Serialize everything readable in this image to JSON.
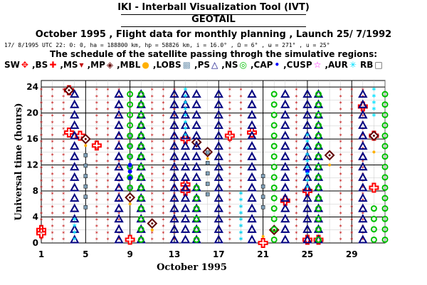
{
  "header": {
    "title": "IKI - Interball Visualization Tool (IVT)",
    "subtitle": "GEOTAIL",
    "headline": "October  1995 ,  Flight data for monthly planning ,   Launch 25/ 7/1992",
    "orbit_line": "17/ 8/1995 UTC 22: 0: 0, ha = 188800 km, hp =  58826 km, i = 16.0° , Ω =   6° , ω = 271° , u =  25°",
    "schedule_text": "The schedule of the satellite passing throgh the simulative regions:"
  },
  "legend": [
    {
      "label": "SW",
      "symbol": "sw",
      "color": "#ff0000"
    },
    {
      "label": "BS",
      "symbol": "bs",
      "color": "#ff0000"
    },
    {
      "label": "MS",
      "symbol": "ms",
      "color": "#c00000"
    },
    {
      "label": "MP",
      "symbol": "mp",
      "color": "#600000"
    },
    {
      "label": "MBL",
      "symbol": "mbl",
      "color": "#ffb000"
    },
    {
      "label": "LOBS",
      "symbol": "lobs",
      "color": "#80a0b8"
    },
    {
      "label": "PS",
      "symbol": "ps",
      "color": "#000080"
    },
    {
      "label": "NS",
      "symbol": "ns",
      "color": "#00c000"
    },
    {
      "label": "CAP",
      "symbol": "cap",
      "color": "#0000ff"
    },
    {
      "label": "CUSP",
      "symbol": "cusp",
      "color": "#ff00ff"
    },
    {
      "label": "AUR",
      "symbol": "aur",
      "color": "#00e0ff"
    },
    {
      "label": "RB",
      "symbol": "rb",
      "color": "#404040"
    }
  ],
  "chart_data": {
    "type": "scatter",
    "title": "",
    "xlabel": "October  1995",
    "ylabel": "Universal time (hours)",
    "xlim": [
      1,
      32
    ],
    "ylim": [
      0,
      25
    ],
    "xticks": [
      1,
      5,
      9,
      13,
      17,
      21,
      25,
      29
    ],
    "yticks": [
      0,
      4,
      8,
      12,
      16,
      20,
      24
    ],
    "grid": true,
    "series": [
      {
        "name": "SW",
        "region": "sw",
        "points": [
          [
            1,
            2
          ],
          [
            3.5,
            23.5
          ],
          [
            14,
            9
          ],
          [
            14,
            16
          ],
          [
            21,
            0
          ],
          [
            25,
            8
          ],
          [
            26,
            0.5
          ],
          [
            31,
            16.5
          ]
        ]
      },
      {
        "name": "BS",
        "region": "bs",
        "points": [
          [
            1,
            1.5
          ],
          [
            3.5,
            17
          ],
          [
            4.5,
            16.5
          ],
          [
            6,
            15
          ],
          [
            9,
            0.5
          ],
          [
            14,
            8
          ],
          [
            18,
            16.5
          ],
          [
            20,
            17
          ],
          [
            23,
            6.5
          ],
          [
            25,
            0.5
          ],
          [
            30,
            21
          ],
          [
            31,
            8.5
          ]
        ]
      },
      {
        "name": "MS",
        "region": "ms",
        "ranges": [
          [
            1,
            0,
            24
          ],
          [
            2,
            0,
            24
          ],
          [
            3,
            0,
            24
          ],
          [
            6,
            0,
            24
          ],
          [
            7,
            0,
            24
          ],
          [
            8,
            0,
            24
          ],
          [
            11,
            0,
            24
          ],
          [
            12,
            0,
            24
          ],
          [
            13,
            0,
            24
          ],
          [
            18,
            0,
            24
          ],
          [
            19,
            0,
            24
          ],
          [
            24,
            0,
            24
          ],
          [
            28,
            0,
            24
          ],
          [
            29,
            0,
            24
          ],
          [
            30,
            0,
            24
          ]
        ]
      },
      {
        "name": "MP",
        "region": "mp",
        "points": [
          [
            3.5,
            23.5
          ],
          [
            5,
            16
          ],
          [
            9,
            7
          ],
          [
            11,
            3
          ],
          [
            15,
            15.5
          ],
          [
            16,
            14
          ],
          [
            22,
            2
          ],
          [
            27,
            13.5
          ],
          [
            31,
            16.5
          ]
        ]
      },
      {
        "name": "MBL",
        "region": "mbl",
        "points": [
          [
            5,
            15
          ],
          [
            9,
            6
          ],
          [
            11,
            2
          ],
          [
            16,
            13
          ],
          [
            21,
            1
          ],
          [
            27,
            12
          ],
          [
            31,
            14
          ]
        ]
      },
      {
        "name": "LOBS",
        "region": "lobs",
        "ranges": [
          [
            5,
            5,
            15
          ],
          [
            9,
            8,
            18
          ],
          [
            16,
            7,
            14
          ],
          [
            21,
            5,
            11
          ]
        ]
      },
      {
        "name": "PS",
        "region": "ps",
        "ranges": [
          [
            4,
            0,
            24
          ],
          [
            8,
            0,
            24
          ],
          [
            10,
            0,
            24
          ],
          [
            13,
            0,
            24
          ],
          [
            14,
            0,
            24
          ],
          [
            15,
            0,
            24
          ],
          [
            17,
            0,
            24
          ],
          [
            20,
            0,
            24
          ],
          [
            23,
            0,
            24
          ],
          [
            25,
            0,
            24
          ],
          [
            26,
            0,
            24
          ],
          [
            30,
            0,
            24
          ]
        ]
      },
      {
        "name": "NS",
        "region": "ns",
        "ranges": [
          [
            9,
            8,
            24
          ],
          [
            10,
            0,
            24
          ],
          [
            15,
            0,
            10
          ],
          [
            22,
            0,
            24
          ],
          [
            26,
            0,
            24
          ],
          [
            31,
            0,
            6
          ],
          [
            32,
            0,
            24
          ]
        ]
      },
      {
        "name": "CAP",
        "region": "cap",
        "points": [
          [
            9,
            12
          ],
          [
            9,
            11
          ],
          [
            9,
            10
          ],
          [
            25,
            11
          ]
        ]
      },
      {
        "name": "CUSP",
        "region": "cusp",
        "points": []
      },
      {
        "name": "AUR",
        "region": "aur",
        "ranges": [
          [
            4,
            0,
            4
          ],
          [
            14,
            16,
            24
          ],
          [
            19,
            0,
            8
          ],
          [
            25,
            8,
            17
          ],
          [
            31,
            19,
            24
          ]
        ]
      },
      {
        "name": "RB",
        "region": "rb",
        "points": []
      }
    ]
  }
}
